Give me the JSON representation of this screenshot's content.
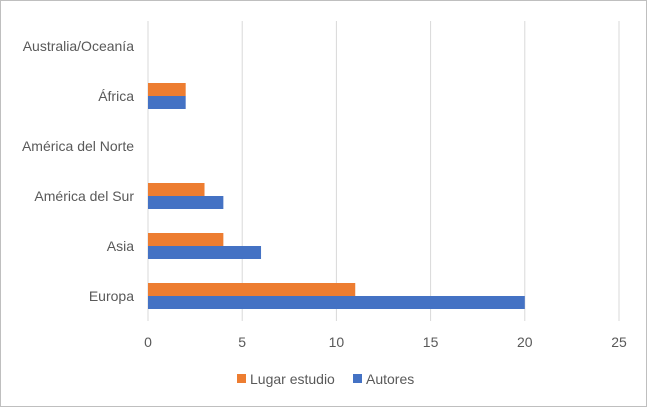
{
  "chart_data": {
    "type": "bar",
    "orientation": "horizontal",
    "title": "",
    "xlabel": "",
    "ylabel": "",
    "categories": [
      "Australia/Oceanía",
      "África",
      "América del Norte",
      "América del Sur",
      "Asia",
      "Europa"
    ],
    "series": [
      {
        "name": "Lugar estudio",
        "color": "#ED7D31",
        "values": [
          0,
          2,
          0,
          3,
          4,
          11
        ]
      },
      {
        "name": "Autores",
        "color": "#4472C4",
        "values": [
          0,
          2,
          0,
          4,
          6,
          20
        ]
      }
    ],
    "xlim": [
      0,
      25
    ],
    "xticks": [
      0,
      5,
      10,
      15,
      20,
      25
    ],
    "grid": "vertical",
    "legend_position": "bottom"
  }
}
